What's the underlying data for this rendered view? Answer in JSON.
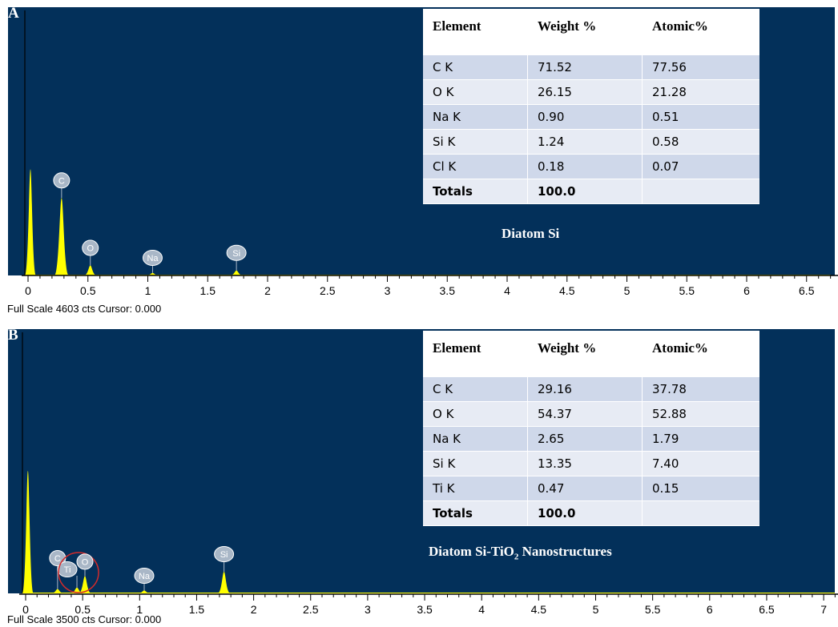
{
  "chart_data": [
    {
      "type": "bar",
      "panel_label": "A",
      "sample": "Diatom Si",
      "xlim": [
        0,
        6.7
      ],
      "x_ticks": [
        "0",
        "0.5",
        "1",
        "1.5",
        "2",
        "2.5",
        "3",
        "3.5",
        "4",
        "4.5",
        "5",
        "5.5",
        "6",
        "6.5"
      ],
      "full_scale_counts": 4603,
      "status_text": "Full Scale 4603 cts Cursor: 0.000",
      "peaks": [
        {
          "element": "",
          "x": 0.02,
          "value": 0.85
        },
        {
          "element": "C",
          "x": 0.28,
          "value": 0.62
        },
        {
          "element": "O",
          "x": 0.52,
          "value": 0.08
        },
        {
          "element": "Na",
          "x": 1.04,
          "value": 0.02
        },
        {
          "element": "Si",
          "x": 1.74,
          "value": 0.04
        }
      ],
      "table": {
        "headers": [
          "Element",
          "Weight %",
          "Atomic%"
        ],
        "rows": [
          [
            "C K",
            "71.52",
            "77.56"
          ],
          [
            "O K",
            "26.15",
            "21.28"
          ],
          [
            "Na K",
            "0.90",
            "0.51"
          ],
          [
            "Si K",
            "1.24",
            "0.58"
          ],
          [
            "Cl K",
            "0.18",
            "0.07"
          ],
          [
            "Totals",
            "100.0",
            ""
          ]
        ]
      }
    },
    {
      "type": "bar",
      "panel_label": "B",
      "sample_main": "Diatom Si-TiO",
      "sample_sub": "2",
      "sample_rest": " Nanostructures",
      "xlim": [
        0,
        7.2
      ],
      "x_ticks": [
        "0",
        "0.5",
        "1",
        "1.5",
        "2",
        "2.5",
        "3",
        "3.5",
        "4",
        "4.5",
        "5",
        "5.5",
        "6",
        "6.5",
        "7"
      ],
      "full_scale_counts": 3500,
      "status_text": "Full Scale 3500 cts Cursor: 0.000",
      "peaks": [
        {
          "element": "",
          "x": 0.02,
          "value": 0.85
        },
        {
          "element": "C",
          "x": 0.28,
          "value": 0.03
        },
        {
          "element": "Ti",
          "x": 0.45,
          "value": 0.04
        },
        {
          "element": "O",
          "x": 0.52,
          "value": 0.12
        },
        {
          "element": "Na",
          "x": 1.04,
          "value": 0.02
        },
        {
          "element": "Si",
          "x": 1.74,
          "value": 0.15
        }
      ],
      "table": {
        "headers": [
          "Element",
          "Weight %",
          "Atomic%"
        ],
        "rows": [
          [
            "C K",
            "29.16",
            "37.78"
          ],
          [
            "O K",
            "54.37",
            "52.88"
          ],
          [
            "Na K",
            "2.65",
            "1.79"
          ],
          [
            "Si K",
            "13.35",
            "7.40"
          ],
          [
            "Ti K",
            "0.47",
            "0.15"
          ],
          [
            "Totals",
            "100.0",
            ""
          ]
        ]
      }
    }
  ],
  "colors": {
    "plot_background": "#03305a",
    "peak_fill": "#ffff00",
    "label_bubble": "#a9b7c7",
    "highlight_circle": "#d22b2b"
  }
}
